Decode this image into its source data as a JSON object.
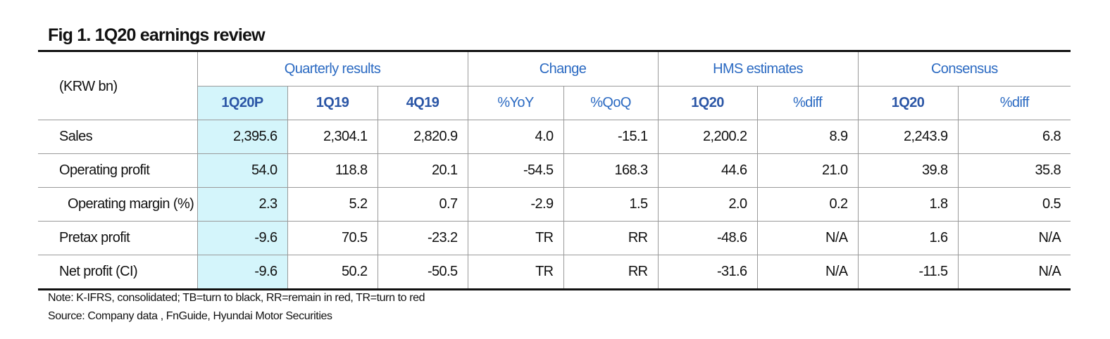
{
  "title": "Fig 1. 1Q20 earnings review",
  "unit_label": "(KRW bn)",
  "groups": [
    "Quarterly results",
    "Change",
    "HMS estimates",
    "Consensus"
  ],
  "columns": [
    "1Q20P",
    "1Q19",
    "4Q19",
    "%YoY",
    "%QoQ",
    "1Q20",
    "%diff",
    "1Q20",
    "%diff"
  ],
  "rows": [
    {
      "label": "Sales",
      "values": [
        "2,395.6",
        "2,304.1",
        "2,820.9",
        "4.0",
        "-15.1",
        "2,200.2",
        "8.9",
        "2,243.9",
        "6.8"
      ]
    },
    {
      "label": "Operating profit",
      "values": [
        "54.0",
        "118.8",
        "20.1",
        "-54.5",
        "168.3",
        "44.6",
        "21.0",
        "39.8",
        "35.8"
      ]
    },
    {
      "label": "Operating margin (%)",
      "values": [
        "2.3",
        "5.2",
        "0.7",
        "-2.9",
        "1.5",
        "2.0",
        "0.2",
        "1.8",
        "0.5"
      ]
    },
    {
      "label": "Pretax profit",
      "values": [
        "-9.6",
        "70.5",
        "-23.2",
        "TR",
        "RR",
        "-48.6",
        "N/A",
        "1.6",
        "N/A"
      ]
    },
    {
      "label": "Net profit (CI)",
      "values": [
        "-9.6",
        "50.2",
        "-50.5",
        "TR",
        "RR",
        "-31.6",
        "N/A",
        "-11.5",
        "N/A"
      ]
    }
  ],
  "notes": [
    "Note: K-IFRS, consolidated; TB=turn to black, RR=remain in red, TR=turn to red",
    "Source: Company data , FnGuide, Hyundai Motor Securities"
  ],
  "colors": {
    "header_blue": "#2b6ac2",
    "header_bold_blue": "#2b56a6",
    "highlight": "#d4f5fb",
    "rule": "#111111",
    "grid": "#9a9a9a"
  }
}
